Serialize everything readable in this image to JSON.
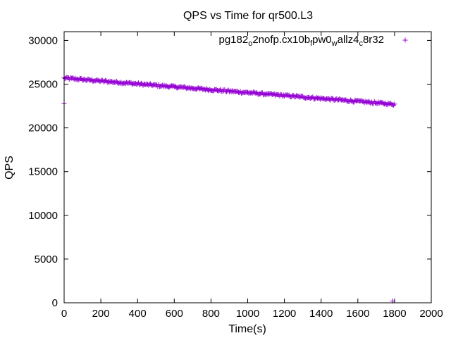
{
  "chart_data": {
    "type": "scatter",
    "title": "QPS vs Time for qr500.L3",
    "xlabel": "Time(s)",
    "ylabel": "QPS",
    "xlim": [
      0,
      2000
    ],
    "ylim": [
      0,
      31000
    ],
    "xticks": [
      "0",
      "200",
      "400",
      "600",
      "800",
      "1000",
      "1200",
      "1400",
      "1600",
      "1800",
      "2000"
    ],
    "xtick_values": [
      0,
      200,
      400,
      600,
      800,
      1000,
      1200,
      1400,
      1600,
      1800,
      2000
    ],
    "yticks": [
      "0",
      "5000",
      "10000",
      "15000",
      "20000",
      "25000",
      "30000"
    ],
    "ytick_values": [
      0,
      5000,
      10000,
      15000,
      20000,
      25000,
      30000
    ],
    "grid": false,
    "legend_position": "top-right",
    "series": [
      {
        "name": "pg182_o2nofp.cx10b_fpw0_wallz4_c8r32",
        "legend_parts": [
          {
            "text": "pg182",
            "sub": false
          },
          {
            "text": "o",
            "sub": true
          },
          {
            "text": "2nofp.cx10b",
            "sub": false
          },
          {
            "text": "f",
            "sub": true
          },
          {
            "text": "pw0",
            "sub": false
          },
          {
            "text": "w",
            "sub": true
          },
          {
            "text": "allz4",
            "sub": false
          },
          {
            "text": "c",
            "sub": true
          },
          {
            "text": "8r32",
            "sub": false
          }
        ],
        "color": "#9400d3",
        "marker": "plus",
        "x_start": 0,
        "x_end": 1800,
        "x_step": 5,
        "y_start": 25700,
        "y_end": 22700,
        "noise": 250,
        "x": [
          0,
          200,
          400,
          600,
          800,
          1000,
          1200,
          1400,
          1600,
          1800
        ],
        "y": [
          25700,
          25300,
          24900,
          24500,
          24200,
          23900,
          23600,
          23300,
          23000,
          22700
        ],
        "outliers": [
          {
            "x": 0,
            "y": 22800
          },
          {
            "x": 1790,
            "y": 200
          }
        ]
      }
    ]
  }
}
